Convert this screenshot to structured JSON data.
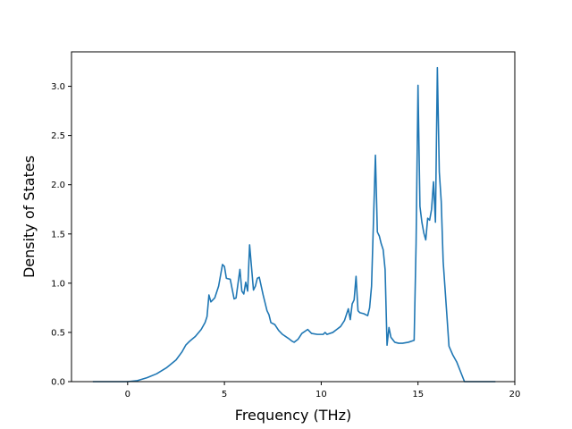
{
  "chart_data": {
    "type": "line",
    "title": "",
    "xlabel": "Frequency (THz)",
    "ylabel": "Density of States",
    "xlim": [
      -2.9,
      20.0
    ],
    "ylim": [
      0.0,
      3.35
    ],
    "xticks": [
      0,
      5,
      10,
      15,
      20
    ],
    "yticks": [
      0.0,
      0.5,
      1.0,
      1.5,
      2.0,
      2.5,
      3.0
    ],
    "xtick_labels": [
      "0",
      "5",
      "10",
      "15",
      "20"
    ],
    "ytick_labels": [
      "0.0",
      "0.5",
      "1.0",
      "1.5",
      "2.0",
      "2.5",
      "3.0"
    ],
    "grid": false,
    "legend": "none",
    "series": [
      {
        "color": "#1f77b4",
        "points": [
          [
            -1.8,
            0.0
          ],
          [
            0.0,
            0.0
          ],
          [
            0.5,
            0.01
          ],
          [
            1.0,
            0.04
          ],
          [
            1.5,
            0.08
          ],
          [
            2.0,
            0.14
          ],
          [
            2.5,
            0.22
          ],
          [
            2.8,
            0.3
          ],
          [
            3.0,
            0.37
          ],
          [
            3.2,
            0.41
          ],
          [
            3.5,
            0.46
          ],
          [
            3.8,
            0.53
          ],
          [
            4.0,
            0.6
          ],
          [
            4.1,
            0.66
          ],
          [
            4.2,
            0.88
          ],
          [
            4.3,
            0.81
          ],
          [
            4.5,
            0.85
          ],
          [
            4.7,
            0.97
          ],
          [
            4.9,
            1.19
          ],
          [
            5.0,
            1.17
          ],
          [
            5.1,
            1.05
          ],
          [
            5.3,
            1.04
          ],
          [
            5.5,
            0.84
          ],
          [
            5.6,
            0.85
          ],
          [
            5.8,
            1.14
          ],
          [
            5.9,
            0.92
          ],
          [
            6.0,
            0.89
          ],
          [
            6.1,
            1.01
          ],
          [
            6.2,
            0.92
          ],
          [
            6.3,
            1.39
          ],
          [
            6.5,
            0.93
          ],
          [
            6.6,
            0.97
          ],
          [
            6.7,
            1.05
          ],
          [
            6.8,
            1.06
          ],
          [
            7.0,
            0.88
          ],
          [
            7.2,
            0.72
          ],
          [
            7.3,
            0.68
          ],
          [
            7.4,
            0.6
          ],
          [
            7.6,
            0.58
          ],
          [
            7.8,
            0.52
          ],
          [
            8.0,
            0.48
          ],
          [
            8.3,
            0.44
          ],
          [
            8.5,
            0.41
          ],
          [
            8.6,
            0.4
          ],
          [
            8.8,
            0.43
          ],
          [
            9.0,
            0.49
          ],
          [
            9.3,
            0.53
          ],
          [
            9.5,
            0.49
          ],
          [
            9.8,
            0.48
          ],
          [
            10.1,
            0.48
          ],
          [
            10.2,
            0.5
          ],
          [
            10.3,
            0.48
          ],
          [
            10.6,
            0.5
          ],
          [
            10.8,
            0.53
          ],
          [
            11.0,
            0.56
          ],
          [
            11.2,
            0.62
          ],
          [
            11.4,
            0.74
          ],
          [
            11.5,
            0.63
          ],
          [
            11.6,
            0.79
          ],
          [
            11.7,
            0.83
          ],
          [
            11.8,
            1.07
          ],
          [
            11.9,
            0.72
          ],
          [
            12.0,
            0.7
          ],
          [
            12.2,
            0.69
          ],
          [
            12.4,
            0.67
          ],
          [
            12.5,
            0.75
          ],
          [
            12.6,
            0.97
          ],
          [
            12.8,
            2.3
          ],
          [
            12.9,
            1.52
          ],
          [
            13.0,
            1.48
          ],
          [
            13.1,
            1.4
          ],
          [
            13.2,
            1.34
          ],
          [
            13.3,
            1.14
          ],
          [
            13.4,
            0.37
          ],
          [
            13.5,
            0.55
          ],
          [
            13.6,
            0.45
          ],
          [
            13.8,
            0.4
          ],
          [
            14.0,
            0.39
          ],
          [
            14.2,
            0.39
          ],
          [
            14.5,
            0.4
          ],
          [
            14.8,
            0.42
          ],
          [
            14.9,
            1.4
          ],
          [
            15.0,
            3.01
          ],
          [
            15.1,
            1.78
          ],
          [
            15.2,
            1.62
          ],
          [
            15.3,
            1.51
          ],
          [
            15.4,
            1.44
          ],
          [
            15.5,
            1.66
          ],
          [
            15.6,
            1.64
          ],
          [
            15.7,
            1.75
          ],
          [
            15.8,
            2.03
          ],
          [
            15.9,
            1.62
          ],
          [
            16.0,
            3.19
          ],
          [
            16.1,
            2.13
          ],
          [
            16.2,
            1.83
          ],
          [
            16.3,
            1.22
          ],
          [
            16.5,
            0.65
          ],
          [
            16.6,
            0.36
          ],
          [
            16.8,
            0.27
          ],
          [
            17.0,
            0.2
          ],
          [
            17.2,
            0.1
          ],
          [
            17.4,
            0.0
          ],
          [
            19.0,
            0.0
          ]
        ]
      }
    ]
  }
}
